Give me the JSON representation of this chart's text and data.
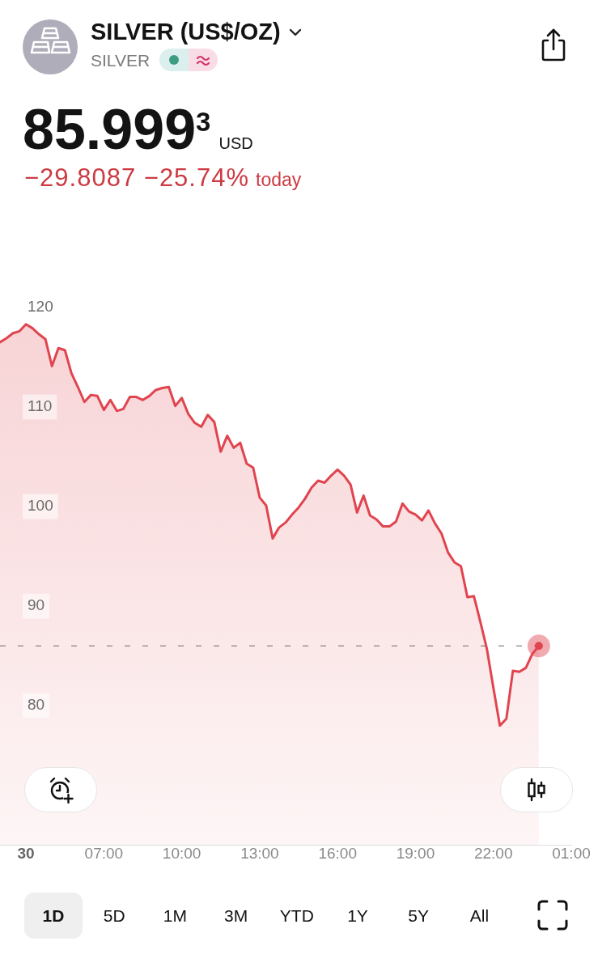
{
  "chart_data": {
    "type": "area",
    "title": "SILVER (US$/OZ)",
    "subtitle": "SILVER",
    "annotations": [
      "85.999$^{3}$",
      "USD",
      "−29.8087 −25.74%",
      "today",
      "1D",
      "5D",
      "1M",
      "3M",
      "YTD",
      "1Y",
      "5Y",
      "All"
    ],
    "x": [
      "--01-30T03:00",
      "--01-30T03:15",
      "--01-30T03:30",
      "--01-30T03:45",
      "--01-30T04:00",
      "--01-30T04:15",
      "--01-30T04:30",
      "--01-30T04:45",
      "--01-30T05:00",
      "--01-30T05:15",
      "--01-30T05:30",
      "--01-30T05:45",
      "--01-30T06:00",
      "--01-30T06:15",
      "--01-30T06:30",
      "--01-30T06:45",
      "--01-30T07:00",
      "--01-30T07:15",
      "--01-30T07:30",
      "--01-30T07:45",
      "--01-30T08:00",
      "--01-30T08:15",
      "--01-30T08:30",
      "--01-30T08:45",
      "--01-30T09:00",
      "--01-30T09:15",
      "--01-30T09:30",
      "--01-30T09:45",
      "--01-30T10:00",
      "--01-30T10:15",
      "--01-30T10:30",
      "--01-30T10:45",
      "--01-30T11:00",
      "--01-30T11:15",
      "--01-30T11:30",
      "--01-30T11:45",
      "--01-30T12:00",
      "--01-30T12:15",
      "--01-30T12:30",
      "--01-30T12:45",
      "--01-30T13:00",
      "--01-30T13:15",
      "--01-30T13:30",
      "--01-30T13:45",
      "--01-30T14:00",
      "--01-30T14:15",
      "--01-30T14:30",
      "--01-30T14:45",
      "--01-30T15:00",
      "--01-30T15:15",
      "--01-30T15:30",
      "--01-30T15:45",
      "--01-30T16:00",
      "--01-30T16:15",
      "--01-30T16:30",
      "--01-30T16:45",
      "--01-30T17:00",
      "--01-30T17:15",
      "--01-30T17:30",
      "--01-30T17:45",
      "--01-30T18:00",
      "--01-30T18:15",
      "--01-30T18:30",
      "--01-30T18:45",
      "--01-30T19:00",
      "--01-30T19:15",
      "--01-30T19:30",
      "--01-30T19:45",
      "--01-30T20:00",
      "--01-30T20:15",
      "--01-30T20:30",
      "--01-30T20:45",
      "--01-30T21:00",
      "--01-30T21:15",
      "--01-30T21:30",
      "--01-30T21:45",
      "--01-30T22:00",
      "--01-30T22:15",
      "--01-30T22:30",
      "--01-30T22:45",
      "--01-30T23:00",
      "--01-30T23:15",
      "--01-30T23:30",
      "--01-30T23:45"
    ],
    "series": [
      {
        "color": "#e0454f",
        "values": [
          116.5,
          116.9,
          117.4,
          117.6,
          118.3,
          117.9,
          117.3,
          116.8,
          114.1,
          115.9,
          115.7,
          113.4,
          112.0,
          110.5,
          111.2,
          111.1,
          109.7,
          110.7,
          109.6,
          109.8,
          111.0,
          111.0,
          110.7,
          111.1,
          111.7,
          111.9,
          112.0,
          110.1,
          110.9,
          109.3,
          108.4,
          108.0,
          109.2,
          108.5,
          105.5,
          107.1,
          105.9,
          106.4,
          104.3,
          103.9,
          100.9,
          100.1,
          96.8,
          97.9,
          98.4,
          99.2,
          99.9,
          100.8,
          101.9,
          102.6,
          102.4,
          103.1,
          103.7,
          103.1,
          102.2,
          99.4,
          101.1,
          99.1,
          98.7,
          98.0,
          98.0,
          98.5,
          100.3,
          99.5,
          99.2,
          98.6,
          99.6,
          98.3,
          97.3,
          95.4,
          94.4,
          94.0,
          90.9,
          91.0,
          88.4,
          85.7,
          81.8,
          78.0,
          78.7,
          83.5,
          83.4,
          83.8,
          85.2,
          86.0
        ]
      },
      {
        "type": "scatter",
        "x": [
          "--01-30T23:45"
        ],
        "color": "#e0454f",
        "values": [
          86.0
        ]
      }
    ],
    "xlim": [
      "--01-30T03:00",
      "--01-31T01:00"
    ],
    "xticks": [
      {
        "value": "--01-30T04:00",
        "label": "30"
      },
      {
        "value": "--01-30T07:00",
        "label": "07:00"
      },
      {
        "value": "--01-30T10:00",
        "label": "10:00"
      },
      {
        "value": "--01-30T13:00",
        "label": "13:00"
      },
      {
        "value": "--01-30T16:00",
        "label": "16:00"
      },
      {
        "value": "--01-30T19:00",
        "label": "19:00"
      },
      {
        "value": "--01-30T22:00",
        "label": "22:00"
      },
      {
        "value": "--01-31T01:00",
        "label": "01:00"
      }
    ],
    "ylim": [
      66,
      120
    ],
    "yticks": [
      80,
      90,
      100,
      110,
      120
    ],
    "ref_lines": [
      {
        "axis": "y",
        "value": 86.0,
        "color": "#9b9b9b",
        "line_style": "dashed"
      }
    ]
  }
}
